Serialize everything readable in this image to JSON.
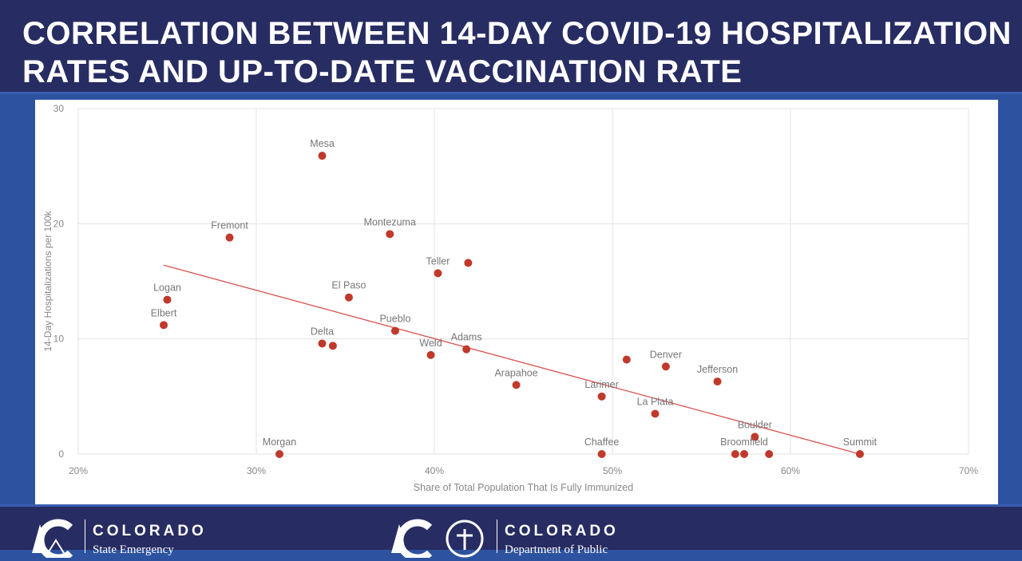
{
  "slide": {
    "title": "CORRELATION BETWEEN 14-DAY COVID-19 HOSPITALIZATION RATES AND UP-TO-DATE VACCINATION RATE"
  },
  "footer": {
    "logo1": {
      "name": "COLORADO",
      "sub": "State Emergency"
    },
    "logo2": {
      "name": "COLORADO",
      "sub": "Department of Public"
    }
  },
  "chart_data": {
    "type": "scatter",
    "title": "",
    "xlabel": "Share of Total Population That Is Fully Immunized",
    "ylabel": "14-Day Hospitalizations per 100k",
    "xlim": [
      20,
      70
    ],
    "ylim": [
      0,
      30
    ],
    "xticks": [
      "20%",
      "30%",
      "40%",
      "50%",
      "60%",
      "70%"
    ],
    "yticks": [
      "0",
      "10",
      "20",
      "30"
    ],
    "grid": true,
    "point_color": "#c0392b",
    "trend_color": "#d9534f",
    "trendline": {
      "x": [
        24.8,
        63.9
      ],
      "y": [
        16.4,
        0
      ]
    },
    "points": [
      {
        "label": "Mesa",
        "x": 33.7,
        "y": 25.9
      },
      {
        "label": "Fremont",
        "x": 28.5,
        "y": 18.8
      },
      {
        "label": "Montezuma",
        "x": 37.5,
        "y": 19.1
      },
      {
        "label": "Teller",
        "x": 40.2,
        "y": 15.7
      },
      {
        "label": "",
        "x": 41.9,
        "y": 16.6
      },
      {
        "label": "Logan",
        "x": 25.0,
        "y": 13.4
      },
      {
        "label": "Elbert",
        "x": 24.8,
        "y": 11.2
      },
      {
        "label": "El Paso",
        "x": 35.2,
        "y": 13.6
      },
      {
        "label": "Pueblo",
        "x": 37.8,
        "y": 10.7
      },
      {
        "label": "Delta",
        "x": 33.7,
        "y": 9.6
      },
      {
        "label": "",
        "x": 34.3,
        "y": 9.4
      },
      {
        "label": "Weld",
        "x": 39.8,
        "y": 8.6
      },
      {
        "label": "Adams",
        "x": 41.8,
        "y": 9.1
      },
      {
        "label": "Arapahoe",
        "x": 44.6,
        "y": 6.0
      },
      {
        "label": "Morgan",
        "x": 31.3,
        "y": 0
      },
      {
        "label": "Larimer",
        "x": 49.4,
        "y": 5.0
      },
      {
        "label": "",
        "x": 50.8,
        "y": 8.2
      },
      {
        "label": "Denver",
        "x": 53.0,
        "y": 7.6
      },
      {
        "label": "Jefferson",
        "x": 55.9,
        "y": 6.3
      },
      {
        "label": "La Plata",
        "x": 52.4,
        "y": 3.5
      },
      {
        "label": "Boulder",
        "x": 58.0,
        "y": 1.5
      },
      {
        "label": "Chaffee",
        "x": 49.4,
        "y": 0
      },
      {
        "label": "",
        "x": 56.9,
        "y": 0
      },
      {
        "label": "Broomfield",
        "x": 57.4,
        "y": 0
      },
      {
        "label": "",
        "x": 58.8,
        "y": 0
      },
      {
        "label": "Summit",
        "x": 63.9,
        "y": 0
      }
    ]
  }
}
